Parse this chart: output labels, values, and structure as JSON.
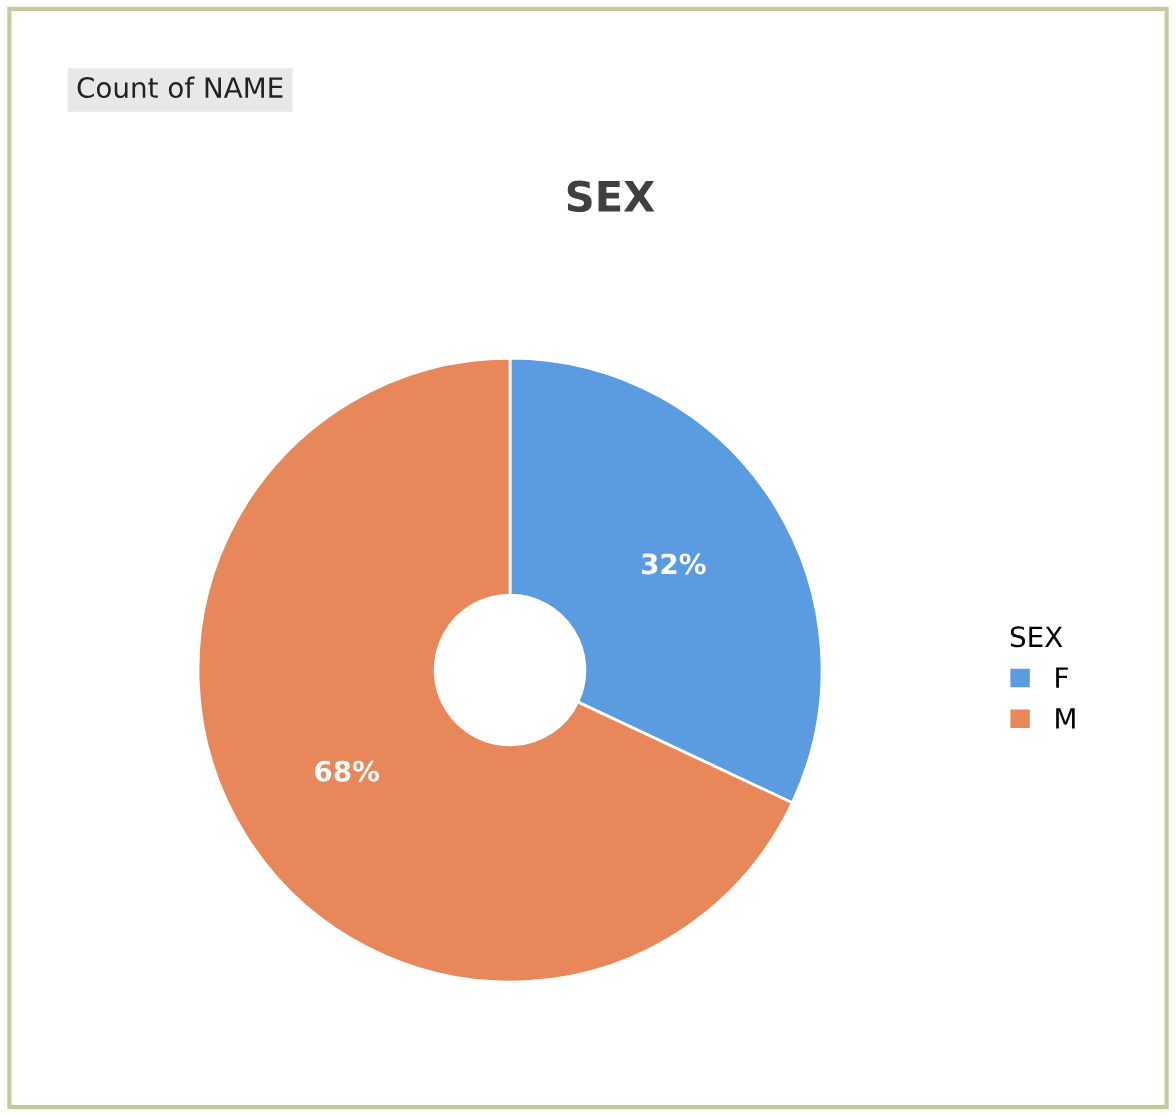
{
  "chart_data": {
    "type": "donut",
    "title": "SEX",
    "annotations": [
      "Count of NAME"
    ],
    "legend_title": "SEX",
    "categories": [
      "F",
      "M"
    ],
    "values": [
      32,
      68
    ],
    "colors": [
      "#5b9be0",
      "#e8875a"
    ],
    "value_labels": [
      "32%",
      "68%"
    ],
    "legend": "right"
  }
}
